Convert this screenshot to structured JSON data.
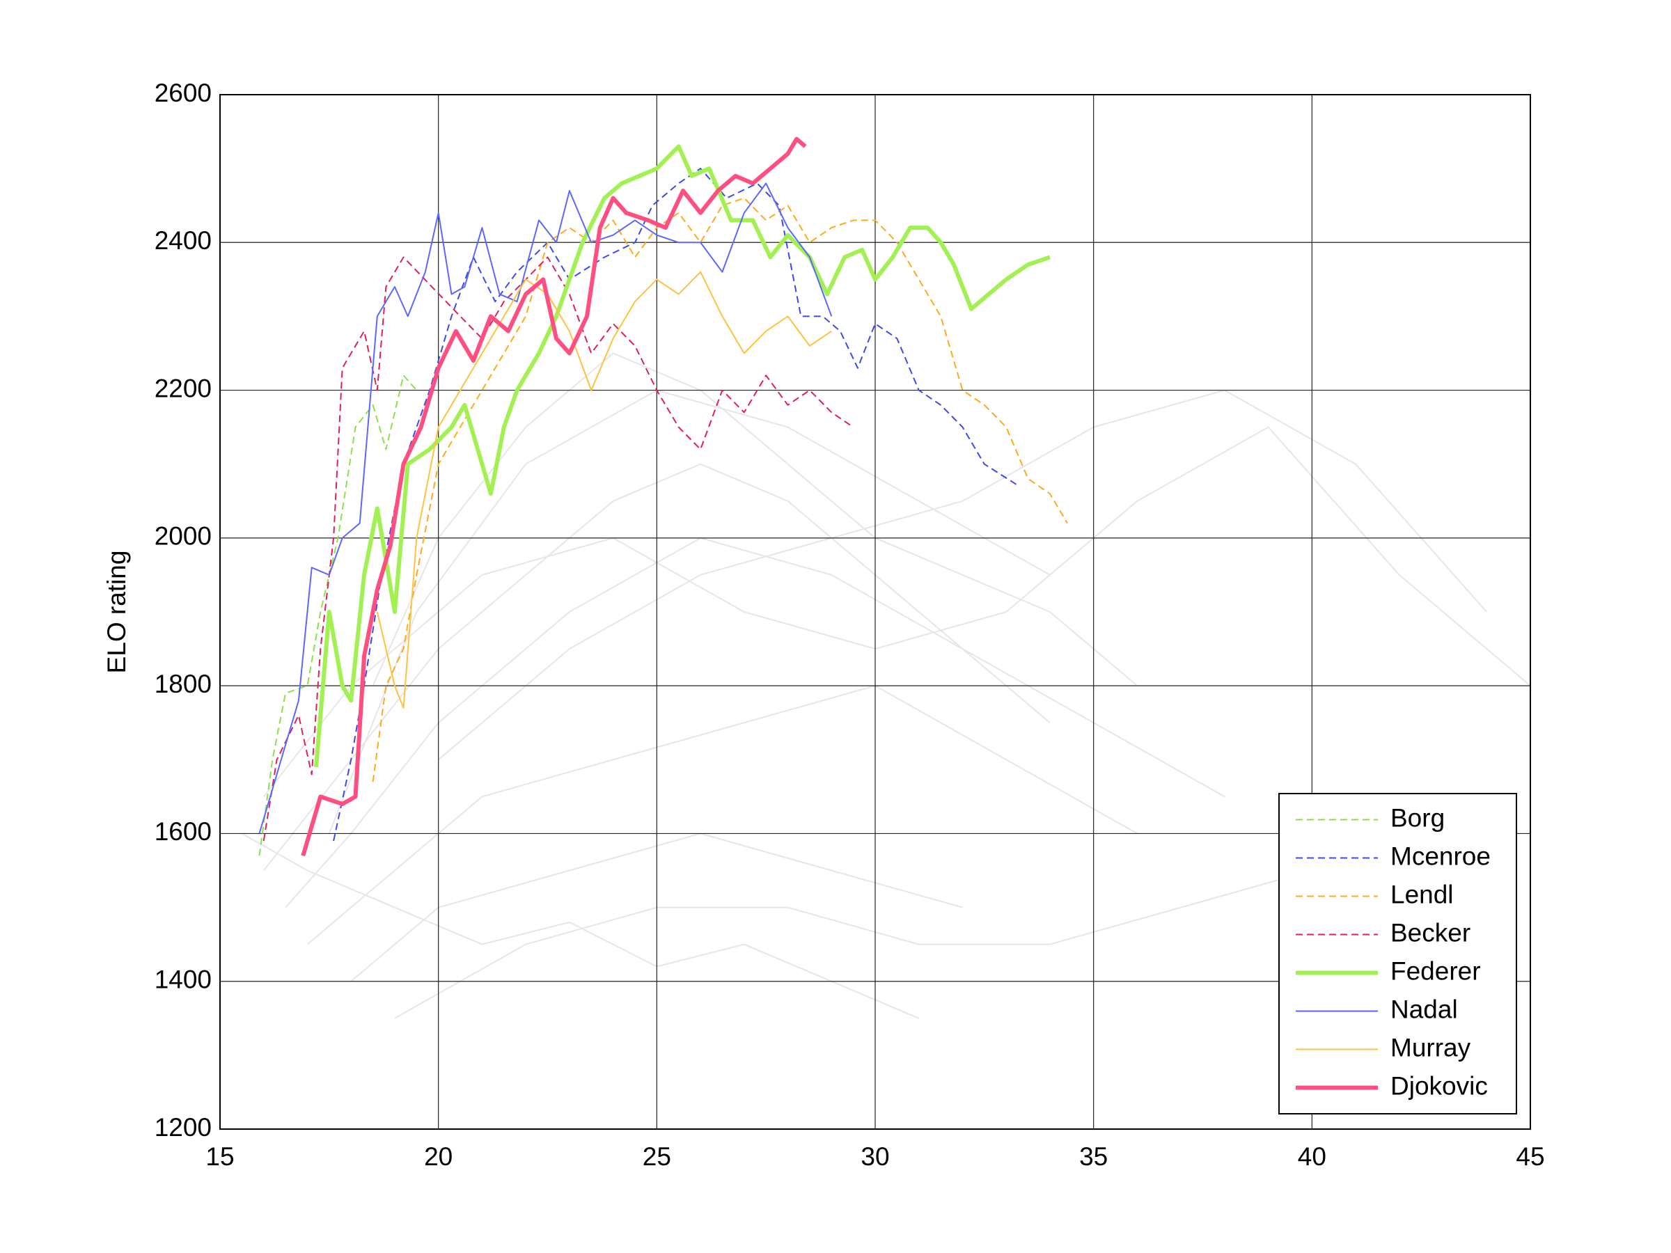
{
  "chart_data": {
    "type": "line",
    "ylabel": "ELO rating",
    "xlim": [
      15,
      45
    ],
    "xticks": [
      15,
      20,
      25,
      30,
      35,
      40,
      45
    ],
    "ylim": [
      1200,
      2600
    ],
    "yticks": [
      1200,
      1400,
      1600,
      1800,
      2000,
      2200,
      2400,
      2600
    ],
    "grid": true,
    "legend": "lower right",
    "series": [
      {
        "name": "Borg",
        "color": "#8ee04a",
        "dashed": true,
        "width": 2,
        "x": [
          15.9,
          16.2,
          16.5,
          17,
          17.3,
          17.7,
          18.1,
          18.5,
          18.8,
          19.2,
          19.5
        ],
        "values": [
          1570,
          1700,
          1790,
          1800,
          1900,
          2000,
          2150,
          2180,
          2120,
          2220,
          2200
        ]
      },
      {
        "name": "Mcenroe",
        "color": "#3a4aee",
        "dashed": true,
        "width": 2,
        "x": [
          17.6,
          18,
          18.3,
          18.7,
          19.2,
          19.8,
          20.3,
          20.8,
          21.3,
          21.8,
          22.5,
          23,
          23.8,
          24.5,
          24.9,
          25.5,
          26,
          26.6,
          27.3,
          27.8,
          28.3,
          28.8,
          29.2,
          29.6,
          30,
          30.5,
          31,
          31.5,
          32,
          32.5,
          33.3
        ],
        "values": [
          1590,
          1700,
          1800,
          1950,
          2100,
          2200,
          2300,
          2380,
          2320,
          2360,
          2400,
          2350,
          2380,
          2400,
          2450,
          2480,
          2500,
          2460,
          2480,
          2450,
          2300,
          2300,
          2280,
          2230,
          2290,
          2270,
          2200,
          2180,
          2150,
          2100,
          2070
        ]
      },
      {
        "name": "Lendl",
        "color": "#ffaa1a",
        "dashed": true,
        "width": 2,
        "x": [
          18.5,
          18.8,
          19.2,
          19.5,
          20,
          20.5,
          21,
          21.5,
          22,
          22.5,
          23,
          23.5,
          24,
          24.5,
          25,
          25.5,
          26,
          26.5,
          27,
          27.5,
          28,
          28.5,
          29,
          29.5,
          30,
          30.5,
          31,
          31.5,
          32,
          32.5,
          33,
          33.5,
          34,
          34.4
        ],
        "values": [
          1670,
          1800,
          1850,
          1950,
          2100,
          2150,
          2200,
          2250,
          2300,
          2400,
          2420,
          2400,
          2430,
          2380,
          2420,
          2440,
          2400,
          2450,
          2460,
          2430,
          2450,
          2400,
          2420,
          2430,
          2430,
          2400,
          2350,
          2300,
          2200,
          2180,
          2150,
          2080,
          2060,
          2020
        ]
      },
      {
        "name": "Becker",
        "color": "#e01e5a",
        "dashed": true,
        "width": 2,
        "x": [
          16,
          16.3,
          16.8,
          17.1,
          17.3,
          17.6,
          17.8,
          18,
          18.3,
          18.6,
          18.8,
          19.2,
          20.5,
          21,
          21.5,
          22,
          22.5,
          23,
          23.5,
          24,
          24.5,
          25,
          25.5,
          26,
          26.5,
          27,
          27.5,
          28,
          28.5,
          29,
          29.5
        ],
        "values": [
          1590,
          1700,
          1760,
          1680,
          1850,
          2000,
          2230,
          2250,
          2280,
          2200,
          2340,
          2380,
          2300,
          2270,
          2320,
          2350,
          2380,
          2330,
          2250,
          2290,
          2260,
          2200,
          2150,
          2120,
          2200,
          2170,
          2220,
          2180,
          2200,
          2170,
          2150
        ]
      },
      {
        "name": "Federer",
        "color": "#a2f052",
        "dashed": false,
        "width": 6,
        "x": [
          17.2,
          17.5,
          17.8,
          18,
          18.3,
          18.6,
          19,
          19.3,
          19.8,
          20.3,
          20.6,
          21,
          21.2,
          21.5,
          21.8,
          22.3,
          22.7,
          23,
          23.3,
          23.8,
          24.2,
          24.6,
          25,
          25.5,
          25.8,
          26.2,
          26.7,
          27.2,
          27.6,
          28,
          28.5,
          28.9,
          29.3,
          29.7,
          30,
          30.4,
          30.8,
          31.2,
          31.5,
          31.8,
          32.2,
          32.6,
          33,
          33.5,
          34
        ],
        "values": [
          1690,
          1900,
          1800,
          1780,
          1950,
          2040,
          1900,
          2100,
          2120,
          2150,
          2180,
          2100,
          2060,
          2150,
          2200,
          2250,
          2300,
          2350,
          2400,
          2460,
          2480,
          2490,
          2500,
          2530,
          2490,
          2500,
          2430,
          2430,
          2380,
          2410,
          2380,
          2330,
          2380,
          2390,
          2350,
          2380,
          2420,
          2420,
          2400,
          2370,
          2310,
          2330,
          2350,
          2370,
          2380
        ]
      },
      {
        "name": "Nadal",
        "color": "#5a68ff",
        "dashed": false,
        "width": 2,
        "x": [
          15.9,
          16.4,
          16.8,
          17.1,
          17.5,
          17.8,
          18.2,
          18.6,
          19,
          19.3,
          19.7,
          20,
          20.3,
          20.6,
          21,
          21.4,
          21.8,
          22.3,
          22.7,
          23,
          23.5,
          24,
          24.5,
          25,
          25.5,
          26,
          26.5,
          27,
          27.5,
          28,
          28.5,
          29
        ],
        "values": [
          1600,
          1700,
          1780,
          1960,
          1950,
          2000,
          2020,
          2300,
          2340,
          2300,
          2360,
          2440,
          2330,
          2340,
          2420,
          2330,
          2320,
          2430,
          2400,
          2470,
          2400,
          2410,
          2430,
          2410,
          2400,
          2400,
          2360,
          2440,
          2480,
          2420,
          2380,
          2300
        ]
      },
      {
        "name": "Murray",
        "color": "#ffc23e",
        "dashed": false,
        "width": 2,
        "x": [
          18.6,
          19,
          19.2,
          19.5,
          20,
          20.5,
          21,
          21.5,
          22,
          22.5,
          23,
          23.5,
          24,
          24.5,
          25,
          25.5,
          26,
          26.5,
          27,
          27.5,
          28,
          28.5,
          29
        ],
        "values": [
          1900,
          1800,
          1770,
          2000,
          2150,
          2200,
          2250,
          2300,
          2350,
          2330,
          2280,
          2200,
          2270,
          2320,
          2350,
          2330,
          2360,
          2300,
          2250,
          2280,
          2300,
          2260,
          2280
        ]
      },
      {
        "name": "Djokovic",
        "color": "#ff4f80",
        "dashed": false,
        "width": 6,
        "x": [
          16.9,
          17.3,
          17.8,
          18.1,
          18.3,
          18.6,
          18.9,
          19.2,
          19.6,
          20,
          20.4,
          20.8,
          21.2,
          21.6,
          22,
          22.4,
          22.7,
          23,
          23.4,
          23.7,
          24,
          24.3,
          24.8,
          25.2,
          25.6,
          26,
          26.4,
          26.8,
          27.2,
          27.6,
          28,
          28.2,
          28.4
        ],
        "values": [
          1570,
          1650,
          1640,
          1650,
          1840,
          1930,
          1990,
          2100,
          2150,
          2230,
          2280,
          2240,
          2300,
          2280,
          2330,
          2350,
          2270,
          2250,
          2300,
          2420,
          2460,
          2440,
          2430,
          2420,
          2470,
          2440,
          2470,
          2490,
          2480,
          2500,
          2520,
          2540,
          2530
        ]
      },
      {
        "color": "#e6e6e6",
        "x": [
          16,
          18,
          20,
          22,
          24,
          26,
          28,
          30,
          32,
          34
        ],
        "values": [
          1550,
          1700,
          1850,
          1950,
          2050,
          2100,
          2050,
          1950,
          1850,
          1750
        ]
      },
      {
        "color": "#e6e6e6",
        "x": [
          16.5,
          18,
          20,
          23,
          26,
          29,
          32,
          35,
          38
        ],
        "values": [
          1500,
          1600,
          1750,
          1900,
          2000,
          1950,
          1850,
          1750,
          1650
        ]
      },
      {
        "color": "#e6e6e6",
        "x": [
          17,
          19,
          21,
          24,
          27,
          30,
          33,
          36
        ],
        "values": [
          1450,
          1550,
          1650,
          1700,
          1750,
          1800,
          1700,
          1600
        ]
      },
      {
        "color": "#e6e6e6",
        "x": [
          17.5,
          19.5,
          22,
          25,
          28,
          31,
          34
        ],
        "values": [
          1600,
          1900,
          2100,
          2200,
          2150,
          2050,
          1950
        ]
      },
      {
        "color": "#e6e6e6",
        "x": [
          18,
          20,
          23,
          26,
          29,
          32
        ],
        "values": [
          1400,
          1500,
          1550,
          1600,
          1550,
          1500
        ]
      },
      {
        "color": "#e6e6e6",
        "x": [
          16,
          18,
          21,
          24,
          27,
          30,
          33,
          36,
          39,
          42,
          45
        ],
        "values": [
          1650,
          1800,
          1950,
          2000,
          1900,
          1850,
          1900,
          2050,
          2150,
          1950,
          1800
        ]
      },
      {
        "color": "#e6e6e6",
        "x": [
          19,
          22,
          25,
          28,
          31,
          34,
          37,
          40,
          43
        ],
        "values": [
          1350,
          1450,
          1500,
          1500,
          1450,
          1450,
          1500,
          1550,
          1650
        ]
      },
      {
        "color": "#e6e6e6",
        "x": [
          20,
          23,
          26,
          29,
          32,
          35,
          38,
          41,
          44
        ],
        "values": [
          1700,
          1850,
          1950,
          2000,
          2050,
          2150,
          2200,
          2100,
          1900
        ]
      },
      {
        "color": "#e6e6e6",
        "x": [
          15.5,
          17,
          19,
          21,
          23,
          25,
          27,
          29,
          31
        ],
        "values": [
          1600,
          1550,
          1500,
          1450,
          1480,
          1420,
          1450,
          1400,
          1350
        ]
      },
      {
        "color": "#e6e6e6",
        "x": [
          18.5,
          20,
          22,
          24,
          26,
          28,
          30,
          32,
          34,
          36
        ],
        "values": [
          1800,
          2000,
          2150,
          2250,
          2200,
          2100,
          2000,
          1950,
          1900,
          1800
        ]
      }
    ]
  }
}
